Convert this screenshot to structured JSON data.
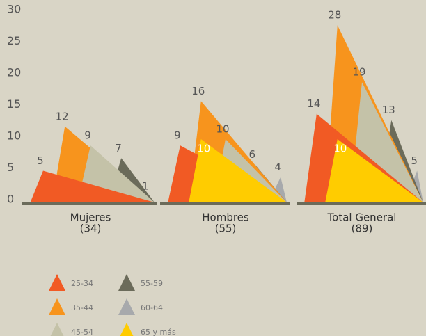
{
  "chart_data": {
    "type": "triangle",
    "categories": [
      "Mujeres",
      "Hombres",
      "Total General"
    ],
    "category_totals": [
      "(34)",
      "(55)",
      "(89)"
    ],
    "series": [
      {
        "name": "25-34",
        "color": "#f15a24",
        "values": [
          5,
          9,
          14
        ]
      },
      {
        "name": "35-44",
        "color": "#f7941d",
        "values": [
          12,
          16,
          28
        ]
      },
      {
        "name": "45-54",
        "color": "#c4c2a8",
        "values": [
          9,
          10,
          19
        ]
      },
      {
        "name": "55-59",
        "color": "#6b6b5a",
        "values": [
          7,
          6,
          13
        ]
      },
      {
        "name": "60-64",
        "color": "#a7a9ac",
        "values": [
          1,
          4,
          5
        ]
      },
      {
        "name": "65 y más",
        "color": "#ffcc00",
        "values": [
          0,
          10,
          10
        ],
        "value_labels": [
          null,
          "10",
          "10"
        ]
      }
    ],
    "ylim": [
      0,
      30
    ],
    "yticks": [
      0,
      5,
      10,
      15,
      20,
      25,
      30
    ],
    "grid": false
  }
}
